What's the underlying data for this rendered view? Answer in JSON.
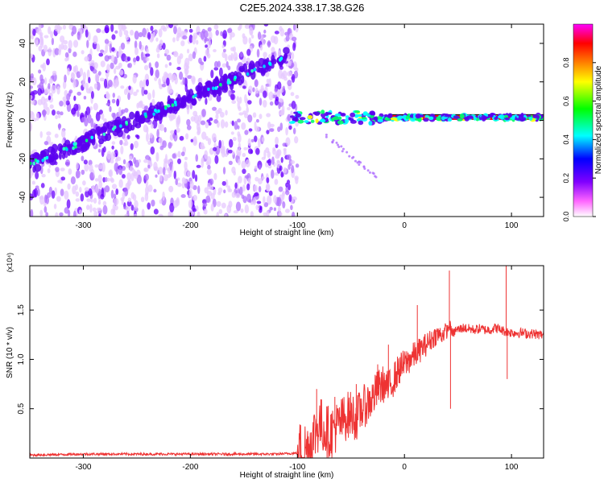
{
  "title": "C2E5.2024.338.17.38.G26",
  "chart_data": [
    {
      "type": "heatmap",
      "xlabel": "Height of straight line (km)",
      "ylabel": "Frequency (Hz)",
      "xlim": [
        -350,
        130
      ],
      "ylim": [
        -50,
        50
      ],
      "xticks": [
        -300,
        -200,
        -100,
        0,
        100
      ],
      "yticks": [
        -40,
        -20,
        0,
        20,
        40
      ],
      "grid": false,
      "colorbar": {
        "label": "Normalized spectral amplitude",
        "range": [
          0,
          1
        ],
        "ticks": [
          "0.0",
          "0.2",
          "0.4",
          "0.6",
          "0.8"
        ],
        "colors": [
          "#ffffff",
          "#ff66ff",
          "#8000ff",
          "#0000ff",
          "#00ffff",
          "#00ff00",
          "#ffff00",
          "#ff8000",
          "#ff0000",
          "#ff00ff"
        ]
      },
      "features": {
        "sloped_track": {
          "x": [
            -350,
            -110
          ],
          "y": [
            -23,
            33
          ]
        },
        "flat_track": {
          "x": [
            -105,
            130
          ],
          "y": [
            1.5,
            1.5
          ]
        },
        "descending_branch": {
          "x": [
            -80,
            -25
          ],
          "y": [
            -5,
            -30
          ]
        },
        "noise_region": {
          "x": [
            -350,
            -100
          ],
          "y": [
            -50,
            50
          ]
        }
      },
      "series_color": "#6a00ff"
    },
    {
      "type": "line",
      "xlabel": "Height of straight line (km)",
      "ylabel": "SNR (10 * v/v)",
      "yscale_label": "(x10⁴)",
      "xlim": [
        -350,
        130
      ],
      "ylim": [
        0,
        1.95
      ],
      "xticks": [
        -300,
        -200,
        -100,
        0,
        100
      ],
      "yticks": [
        "0.5",
        "1.0",
        "1.5"
      ],
      "ytick_values": [
        0.5,
        1.0,
        1.5
      ],
      "color": "#ee3333",
      "x": [
        -350,
        -300,
        -250,
        -200,
        -150,
        -120,
        -100,
        -90,
        -85,
        -80,
        -75,
        -70,
        -65,
        -60,
        -55,
        -50,
        -45,
        -40,
        -35,
        -30,
        -25,
        -20,
        -15,
        -10,
        -5,
        0,
        5,
        10,
        15,
        20,
        25,
        30,
        35,
        40,
        43,
        45,
        48,
        50,
        55,
        60,
        65,
        70,
        75,
        80,
        85,
        90,
        95,
        97,
        100,
        105,
        110,
        115,
        120,
        125,
        130
      ],
      "y": [
        0.03,
        0.04,
        0.04,
        0.04,
        0.04,
        0.04,
        0.05,
        0.1,
        0.22,
        0.35,
        0.3,
        0.25,
        0.3,
        0.35,
        0.42,
        0.45,
        0.4,
        0.5,
        0.55,
        0.6,
        0.7,
        0.75,
        0.7,
        0.8,
        0.9,
        0.95,
        1.0,
        1.05,
        1.1,
        1.15,
        1.2,
        1.25,
        1.25,
        1.3,
        1.35,
        1.25,
        1.3,
        1.3,
        1.32,
        1.31,
        1.3,
        1.31,
        1.3,
        1.3,
        1.32,
        1.3,
        1.28,
        1.28,
        1.27,
        1.27,
        1.27,
        1.26,
        1.26,
        1.25,
        1.25
      ],
      "spikes": [
        {
          "x": -82,
          "y": 0.7
        },
        {
          "x": -65,
          "y": 0.62
        },
        {
          "x": -45,
          "y": 0.75
        },
        {
          "x": -25,
          "y": 0.95
        },
        {
          "x": -15,
          "y": 1.15
        },
        {
          "x": 5,
          "y": 1.05
        },
        {
          "x": 12,
          "y": 1.55
        },
        {
          "x": 42,
          "y": 1.9
        },
        {
          "x": 43,
          "y": 0.5
        },
        {
          "x": 95,
          "y": 1.95
        },
        {
          "x": 96,
          "y": 0.8
        }
      ]
    }
  ]
}
